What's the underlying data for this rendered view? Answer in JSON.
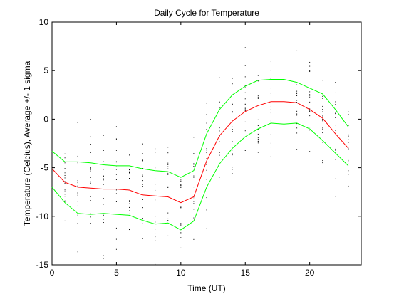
{
  "chart_data": {
    "type": "line",
    "title": "Daily Cycle for Temperature",
    "xlabel": "Time (UT)",
    "ylabel": "Temperature (Celcius), Average +/- 1 sigma",
    "xlim": [
      0,
      24
    ],
    "ylim": [
      -15,
      10
    ],
    "xticks": [
      0,
      5,
      10,
      15,
      20
    ],
    "yticks": [
      -15,
      -10,
      -5,
      0,
      5,
      10
    ],
    "grid": false,
    "colors": {
      "upper": "#00ff00",
      "average": "#ff0000",
      "lower": "#00ff00",
      "scatter": "#000000"
    },
    "x": [
      0,
      1,
      2,
      3,
      4,
      5,
      6,
      7,
      8,
      9,
      10,
      11,
      12,
      13,
      14,
      15,
      16,
      17,
      18,
      19,
      20,
      21,
      22,
      23
    ],
    "series": [
      {
        "key": "upper",
        "values": [
          -3.3,
          -4.4,
          -4.4,
          -4.5,
          -4.7,
          -4.8,
          -4.8,
          -5.1,
          -5.3,
          -5.4,
          -6.0,
          -5.3,
          -1.5,
          1.0,
          2.5,
          3.4,
          4.0,
          4.1,
          4.1,
          3.8,
          3.2,
          2.6,
          1.0,
          -0.8
        ]
      },
      {
        "key": "average",
        "values": [
          -5.1,
          -6.5,
          -7.0,
          -7.1,
          -7.2,
          -7.2,
          -7.3,
          -7.8,
          -7.9,
          -8.0,
          -8.6,
          -8.0,
          -4.3,
          -1.7,
          -0.2,
          0.8,
          1.4,
          1.8,
          1.8,
          1.7,
          1.0,
          0.1,
          -1.5,
          -3.0
        ]
      },
      {
        "key": "lower",
        "values": [
          -7.0,
          -8.6,
          -9.7,
          -9.8,
          -9.7,
          -9.8,
          -9.9,
          -10.4,
          -10.8,
          -10.7,
          -11.4,
          -10.5,
          -7.0,
          -4.6,
          -3.0,
          -1.8,
          -1.0,
          -0.4,
          -0.5,
          -0.4,
          -1.0,
          -2.2,
          -3.5,
          -4.8
        ]
      }
    ]
  }
}
